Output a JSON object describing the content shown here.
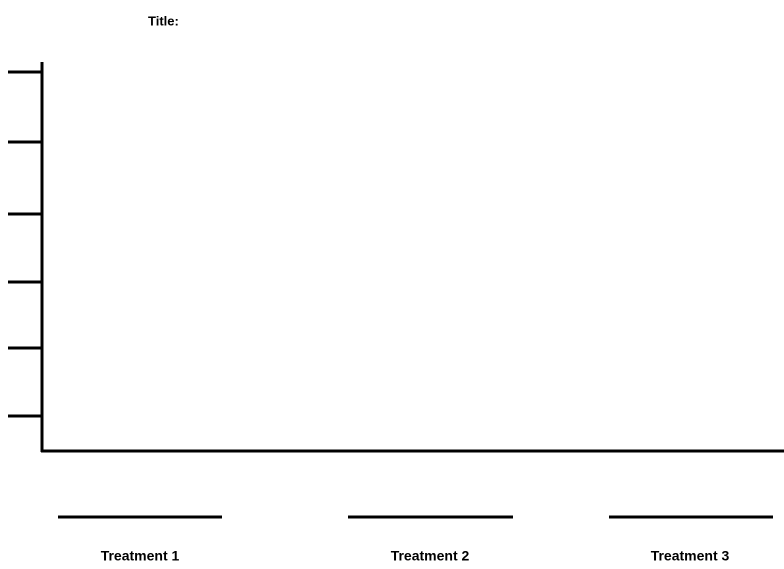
{
  "title": "Title:",
  "labels": [
    "Treatment 1",
    "Treatment 2",
    "Treatment 3"
  ]
}
